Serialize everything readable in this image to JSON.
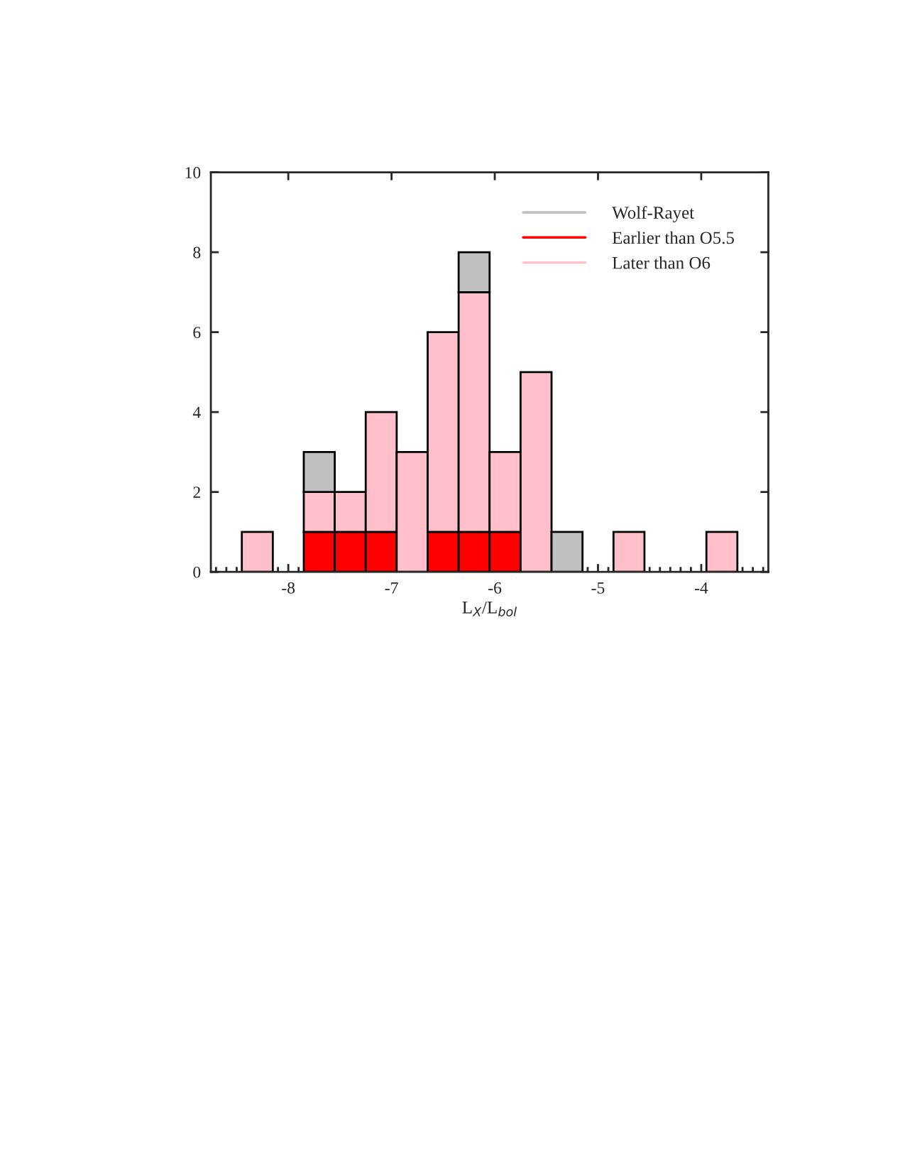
{
  "chart_data": {
    "type": "bar",
    "xlabel": "L$_{X}$/L$_{bol}$",
    "stacked": true,
    "x": [
      -8.3,
      -8.0,
      -7.7,
      -7.4,
      -7.1,
      -6.8,
      -6.5,
      -6.2,
      -5.9,
      -5.6,
      -5.3,
      -5.0,
      -4.7,
      -4.4,
      -4.1,
      -3.8
    ],
    "series": [
      {
        "name": "Earlier than O5.5",
        "color": "#ff0000",
        "values": [
          0,
          0,
          1,
          1,
          1,
          0,
          1,
          1,
          1,
          0,
          0,
          0,
          0,
          0,
          0,
          0
        ]
      },
      {
        "name": "Later than O6",
        "color": "#ffc0cb",
        "values": [
          1,
          0,
          1,
          1,
          3,
          3,
          5,
          6,
          2,
          5,
          0,
          0,
          1,
          0,
          0,
          1
        ]
      },
      {
        "name": "Wolf-Rayet",
        "color": "#c0c0c0",
        "values": [
          0,
          0,
          1,
          0,
          0,
          0,
          0,
          1,
          0,
          0,
          1,
          0,
          0,
          0,
          0,
          0
        ]
      }
    ],
    "xlim": [
      -8.75,
      -3.35
    ],
    "ylim": [
      0,
      10
    ],
    "xticks": [
      -8,
      -7,
      -6,
      -5,
      -4
    ],
    "yticks": [
      0,
      2,
      4,
      6,
      8,
      10
    ],
    "legend": "top right",
    "grid": false
  }
}
